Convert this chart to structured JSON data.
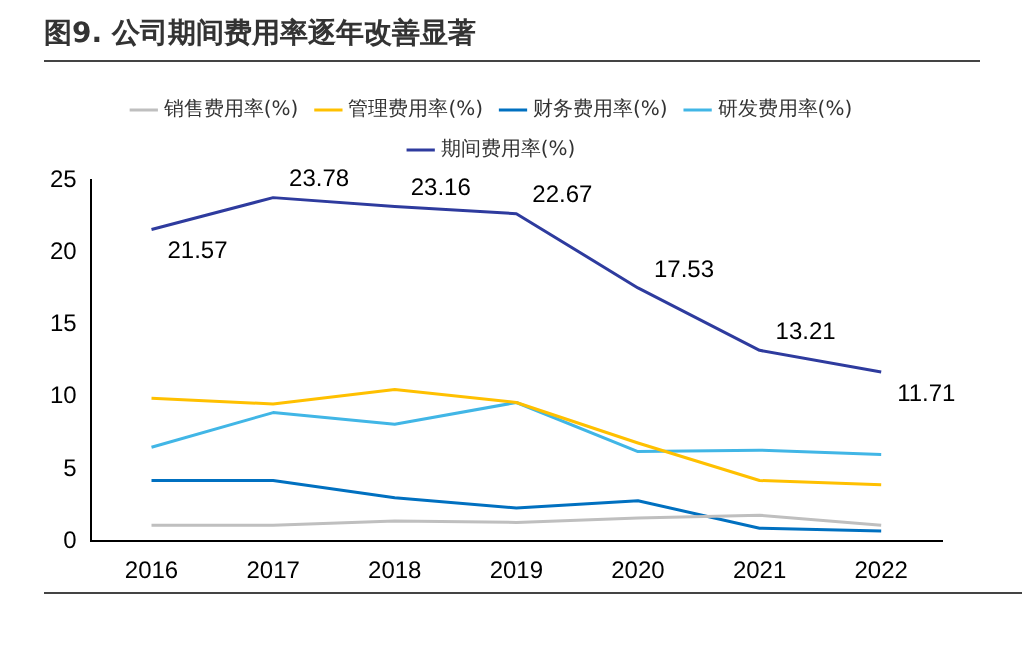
{
  "chart_data": {
    "type": "line",
    "title": "图9. 公司期间费用率逐年改善显著",
    "categories": [
      "2016",
      "2017",
      "2018",
      "2019",
      "2020",
      "2021",
      "2022"
    ],
    "series": [
      {
        "name": "销售费用率(%)",
        "color": "#bfbfbf",
        "values": [
          1.1,
          1.1,
          1.4,
          1.3,
          1.6,
          1.8,
          1.1
        ]
      },
      {
        "name": "管理费用率(%)",
        "color": "#ffc000",
        "values": [
          9.9,
          9.5,
          10.5,
          9.6,
          6.8,
          4.2,
          3.9
        ]
      },
      {
        "name": "财务费用率(%)",
        "color": "#0070c0",
        "values": [
          4.2,
          4.2,
          3.0,
          2.3,
          2.8,
          0.9,
          0.7
        ]
      },
      {
        "name": "研发费用率(%)",
        "color": "#41b6e6",
        "values": [
          6.5,
          8.9,
          8.1,
          9.6,
          6.2,
          6.3,
          6.0
        ]
      },
      {
        "name": "期间费用率(%)",
        "color": "#2e3b9e",
        "values": [
          21.57,
          23.78,
          23.16,
          22.67,
          17.53,
          13.21,
          11.71
        ],
        "value_labels": [
          "21.57",
          "23.78",
          "23.16",
          "22.67",
          "17.53",
          "13.21",
          "11.71"
        ]
      }
    ],
    "ylim": [
      0,
      25
    ],
    "yticks": [
      0,
      5,
      10,
      15,
      20,
      25
    ],
    "grid": false,
    "legend": "top",
    "marker": "none",
    "line_style": "solid"
  }
}
